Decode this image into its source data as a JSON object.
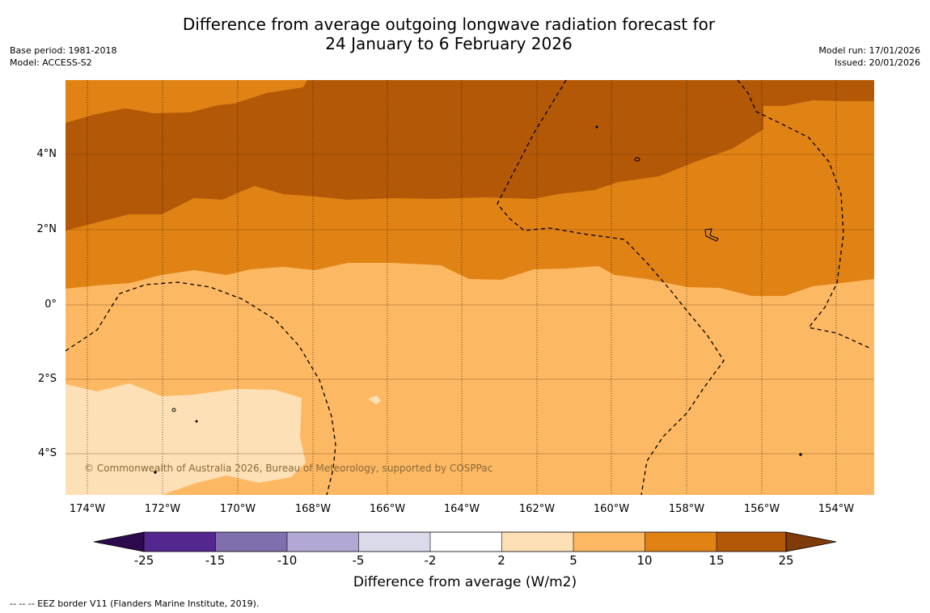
{
  "title": {
    "line1": "Difference from average outgoing longwave radiation forecast for",
    "line2": "24 January to 6 February 2026"
  },
  "meta_left": {
    "base_period": "Base period: 1981-2018",
    "model": "Model: ACCESS-S2"
  },
  "meta_right": {
    "model_run": "Model run: 17/01/2026",
    "issued": "Issued: 20/01/2026"
  },
  "map": {
    "lat_labels": [
      "4°N",
      "2°N",
      "0°",
      "2°S",
      "4°S"
    ],
    "lon_labels": [
      "174°W",
      "172°W",
      "170°W",
      "168°W",
      "166°W",
      "164°W",
      "162°W",
      "160°W",
      "158°W",
      "156°W",
      "154°W"
    ],
    "copyright": "© Commonwealth of Australia 2026, Bureau of Meteorology, supported by COSPPac"
  },
  "colorbar": {
    "ticks": [
      "-25",
      "-15",
      "-10",
      "-5",
      "-2",
      "2",
      "5",
      "10",
      "15",
      "25"
    ],
    "colors": {
      "below_min": "#2d0a4e",
      "b_-25_-15": "#54278f",
      "b_-15_-10": "#7f70ad",
      "b_-10_-5": "#b1a9d4",
      "b_-5_-2": "#dadaeb",
      "b_-2_2": "#ffffff",
      "b_2_5": "#fee0b6",
      "b_5_10": "#fdb863",
      "b_10_15": "#e08214",
      "b_15_25": "#b35806",
      "above_max": "#7f3b08"
    },
    "label": "Difference from average (W/m2)"
  },
  "footer": {
    "eez_note": "--  --  -- EEZ border V11 (Flanders Marine Institute, 2019)."
  }
}
